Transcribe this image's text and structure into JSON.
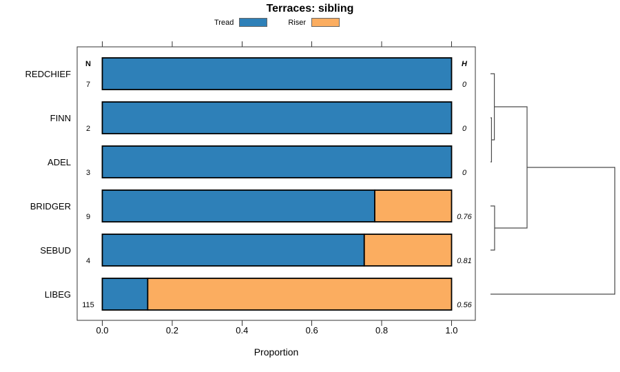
{
  "columns": {
    "n_header": "N",
    "h_header": "H"
  },
  "axis": {
    "label": "Proportion",
    "ticks": [
      0.0,
      0.2,
      0.4,
      0.6,
      0.8,
      1.0
    ],
    "tick_labels": [
      "0.0",
      "0.2",
      "0.4",
      "0.6",
      "0.8",
      "1.0"
    ]
  },
  "chart_data": {
    "type": "bar",
    "orientation": "horizontal-stacked",
    "title": "Terraces: sibling",
    "xlabel": "Proportion",
    "xlim": [
      0,
      1
    ],
    "legend_position": "top",
    "grid": false,
    "categories": [
      "REDCHIEF",
      "FINN",
      "ADEL",
      "BRIDGER",
      "SEBUD",
      "LIBEG"
    ],
    "n_values": [
      7,
      2,
      3,
      9,
      4,
      115
    ],
    "h_values": [
      "0",
      "0",
      "0",
      "0.76",
      "0.81",
      "0.56"
    ],
    "series": [
      {
        "name": "Tread",
        "color": "#2e80b8",
        "values": [
          1.0,
          1.0,
          1.0,
          0.78,
          0.75,
          0.13
        ]
      },
      {
        "name": "Riser",
        "color": "#fbad60",
        "values": [
          0.0,
          0.0,
          0.0,
          0.22,
          0.25,
          0.87
        ]
      }
    ]
  },
  "dendrogram": {
    "leaves": [
      "REDCHIEF",
      "FINN",
      "ADEL",
      "BRIDGER",
      "SEBUD",
      "LIBEG"
    ],
    "merges": [
      {
        "a": "leaf:FINN",
        "b": "leaf:ADEL",
        "h": 0.008
      },
      {
        "a": "leaf:REDCHIEF",
        "b": "node:0",
        "h": 0.031
      },
      {
        "a": "leaf:BRIDGER",
        "b": "leaf:SEBUD",
        "h": 0.033
      },
      {
        "a": "node:1",
        "b": "node:2",
        "h": 0.294
      },
      {
        "a": "node:3",
        "b": "leaf:LIBEG",
        "h": 1.0
      }
    ]
  }
}
